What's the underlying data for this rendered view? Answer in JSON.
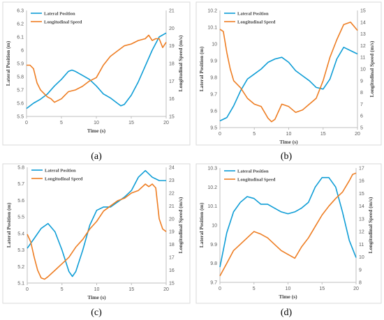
{
  "colors": {
    "lateral": "#0e9dd6",
    "speed": "#ee7d22",
    "axis": "#bfbfbf",
    "panel_border": "#d9d9d9"
  },
  "chart_data": [
    {
      "type": "line",
      "caption": "(a)",
      "legend": [
        "Lateral Position",
        "Longitudinal Speed"
      ],
      "legend_position": "top-left",
      "xlabel": "Time (s)",
      "ylabel_left": "Lateral Position (m)",
      "ylabel_right": "Longitudinal Speed (m/s)",
      "xlim": [
        0,
        20
      ],
      "x_ticks": [
        "0",
        "5",
        "10",
        "15",
        "20"
      ],
      "ylim_left": [
        5.5,
        6.3
      ],
      "y_ticks_left": [
        "5.5",
        "5.6",
        "5.7",
        "5.8",
        "5.9",
        "6",
        "6.1",
        "6.2",
        "6.3"
      ],
      "ylim_right": [
        15,
        21
      ],
      "y_ticks_right": [
        "15",
        "16",
        "17",
        "18",
        "19",
        "20",
        "21"
      ],
      "grid": false,
      "series": [
        {
          "name": "Lateral Position",
          "axis": "left",
          "x": [
            0,
            1,
            2,
            3,
            4,
            5,
            6,
            6.5,
            7,
            8,
            9,
            10,
            11,
            12,
            13,
            13.5,
            14,
            15,
            16,
            17,
            18,
            19,
            20
          ],
          "y": [
            5.56,
            5.6,
            5.63,
            5.67,
            5.73,
            5.78,
            5.84,
            5.85,
            5.84,
            5.81,
            5.78,
            5.73,
            5.67,
            5.64,
            5.6,
            5.58,
            5.59,
            5.66,
            5.76,
            5.88,
            6.0,
            6.1,
            6.13
          ]
        },
        {
          "name": "Longitudinal Speed",
          "axis": "right",
          "x": [
            0,
            0.5,
            1,
            1.5,
            2,
            2.5,
            3,
            3.5,
            4,
            4.5,
            5,
            5.5,
            6,
            7,
            8,
            9,
            10,
            11,
            12,
            13,
            14,
            15,
            16,
            17,
            17.5,
            18,
            18.5,
            19,
            19.5,
            20
          ],
          "y": [
            17.9,
            17.9,
            17.7,
            16.9,
            16.5,
            16.3,
            16.1,
            16.0,
            15.8,
            15.9,
            16.0,
            16.2,
            16.4,
            16.5,
            16.7,
            17.0,
            17.2,
            17.9,
            18.4,
            18.7,
            19.0,
            19.1,
            19.3,
            19.4,
            19.6,
            19.3,
            19.4,
            19.4,
            18.9,
            19.2
          ]
        }
      ]
    },
    {
      "type": "line",
      "caption": "(b)",
      "legend": [
        "Lateral Position",
        "Longitudinal Speed"
      ],
      "legend_position": "top-left",
      "xlabel": "Time (s)",
      "ylabel_left": "Lateral Position (m)",
      "ylabel_right": "Longitudinal Speed (m/s)",
      "xlim": [
        0,
        20
      ],
      "x_ticks": [
        "0",
        "5",
        "10",
        "15",
        "20"
      ],
      "ylim_left": [
        9.5,
        10.2
      ],
      "y_ticks_left": [
        "9.5",
        "9.6",
        "9.7",
        "9.8",
        "9.9",
        "10",
        "10.1",
        "10.2"
      ],
      "ylim_right": [
        5,
        15
      ],
      "y_ticks_right": [
        "5",
        "6",
        "7",
        "8",
        "9",
        "10",
        "11",
        "12",
        "13",
        "14",
        "15"
      ],
      "grid": false,
      "series": [
        {
          "name": "Lateral Position",
          "axis": "left",
          "x": [
            0,
            1,
            2,
            3,
            4,
            5,
            6,
            7,
            8,
            9,
            10,
            11,
            12,
            13,
            14,
            15,
            16,
            17,
            18,
            19,
            20
          ],
          "y": [
            9.54,
            9.56,
            9.63,
            9.72,
            9.79,
            9.82,
            9.85,
            9.89,
            9.91,
            9.92,
            9.89,
            9.84,
            9.81,
            9.78,
            9.74,
            9.73,
            9.79,
            9.91,
            9.98,
            9.96,
            9.94
          ]
        },
        {
          "name": "Longitudinal Speed",
          "axis": "right",
          "x": [
            0,
            0.5,
            1,
            1.5,
            2,
            3,
            4,
            5,
            6,
            7,
            7.5,
            8,
            9,
            10,
            11,
            12,
            13,
            14,
            15,
            16,
            17,
            18,
            19,
            20
          ],
          "y": [
            13.4,
            13.2,
            11.4,
            10.0,
            9.0,
            8.4,
            7.5,
            7.0,
            6.8,
            5.8,
            5.5,
            5.7,
            7.0,
            6.8,
            6.3,
            6.5,
            7.0,
            7.5,
            9.0,
            11.0,
            12.5,
            13.8,
            14.0,
            13.3
          ]
        }
      ]
    },
    {
      "type": "line",
      "caption": "(c)",
      "legend": [
        "Lateral Position",
        "Longitudinal Speed"
      ],
      "legend_position": "top-left",
      "xlabel": "Time (s)",
      "ylabel_left": "Lateral Position (m)",
      "ylabel_right": "Longitudinal Speed (m/s)",
      "xlim": [
        0,
        20
      ],
      "x_ticks": [
        "0",
        "5",
        "10",
        "15",
        "20"
      ],
      "ylim_left": [
        5.1,
        5.8
      ],
      "y_ticks_left": [
        "5.1",
        "5.2",
        "5.3",
        "5.4",
        "5.5",
        "5.6",
        "5.7",
        "5.8"
      ],
      "ylim_right": [
        15,
        24
      ],
      "y_ticks_right": [
        "15",
        "16",
        "17",
        "18",
        "19",
        "20",
        "21",
        "22",
        "23",
        "24"
      ],
      "grid": false,
      "series": [
        {
          "name": "Lateral Position",
          "axis": "left",
          "x": [
            0,
            1,
            2,
            3,
            4,
            5,
            6,
            6.5,
            7,
            8,
            9,
            10,
            11,
            12,
            13,
            14,
            15,
            16,
            17,
            18,
            19,
            20
          ],
          "y": [
            5.31,
            5.37,
            5.43,
            5.46,
            5.41,
            5.3,
            5.17,
            5.14,
            5.17,
            5.3,
            5.45,
            5.54,
            5.56,
            5.56,
            5.59,
            5.62,
            5.66,
            5.74,
            5.78,
            5.74,
            5.72,
            5.72
          ]
        },
        {
          "name": "Longitudinal Speed",
          "axis": "right",
          "x": [
            0,
            0.5,
            1,
            1.5,
            2,
            2.5,
            3,
            4,
            5,
            6,
            7,
            8,
            9,
            10,
            11,
            12,
            13,
            14,
            15,
            16,
            17,
            17.5,
            18,
            18.5,
            19,
            19.5,
            20
          ],
          "y": [
            18.8,
            18.2,
            17.0,
            16.0,
            15.4,
            15.3,
            15.5,
            16.0,
            16.5,
            17.0,
            17.8,
            18.4,
            19.2,
            19.8,
            20.6,
            21.0,
            21.4,
            21.6,
            22.0,
            22.2,
            22.7,
            22.5,
            22.7,
            22.4,
            20.0,
            19.2,
            19.0
          ]
        }
      ]
    },
    {
      "type": "line",
      "caption": "(d)",
      "legend": [
        "Lateral Position",
        "Longitudinal Speed"
      ],
      "legend_position": "top-left",
      "xlabel": "Time (s)",
      "ylabel_left": "Lateral Position (m)",
      "ylabel_right": "Longitudinal Speed (m/s)",
      "xlim": [
        0,
        20
      ],
      "x_ticks": [
        "0",
        "5",
        "10",
        "15",
        "20"
      ],
      "ylim_left": [
        9.7,
        10.3
      ],
      "y_ticks_left": [
        "9.7",
        "9.8",
        "9.9",
        "10",
        "10.1",
        "10.2",
        "10.3"
      ],
      "ylim_right": [
        8,
        17
      ],
      "y_ticks_right": [
        "8",
        "9",
        "10",
        "11",
        "12",
        "13",
        "14",
        "15",
        "16",
        "17"
      ],
      "grid": false,
      "series": [
        {
          "name": "Lateral Position",
          "axis": "left",
          "x": [
            0,
            1,
            2,
            3,
            4,
            5,
            6,
            7,
            8,
            9,
            10,
            11,
            12,
            13,
            14,
            15,
            16,
            17,
            18,
            19,
            20
          ],
          "y": [
            9.78,
            9.96,
            10.07,
            10.12,
            10.15,
            10.14,
            10.11,
            10.11,
            10.09,
            10.07,
            10.06,
            10.07,
            10.09,
            10.12,
            10.2,
            10.25,
            10.25,
            10.2,
            10.07,
            9.92,
            9.83
          ]
        },
        {
          "name": "Longitudinal Speed",
          "axis": "right",
          "x": [
            0,
            1,
            2,
            3,
            4,
            5,
            6,
            7,
            8,
            9,
            10,
            11,
            12,
            13,
            14,
            15,
            16,
            17,
            18,
            19,
            19.5,
            20
          ],
          "y": [
            8.5,
            9.5,
            10.5,
            11.0,
            11.5,
            12.0,
            11.8,
            11.5,
            11.0,
            10.5,
            10.2,
            9.9,
            10.8,
            11.5,
            12.4,
            13.3,
            14.0,
            14.6,
            15.1,
            16.0,
            16.5,
            16.6
          ]
        }
      ]
    }
  ]
}
